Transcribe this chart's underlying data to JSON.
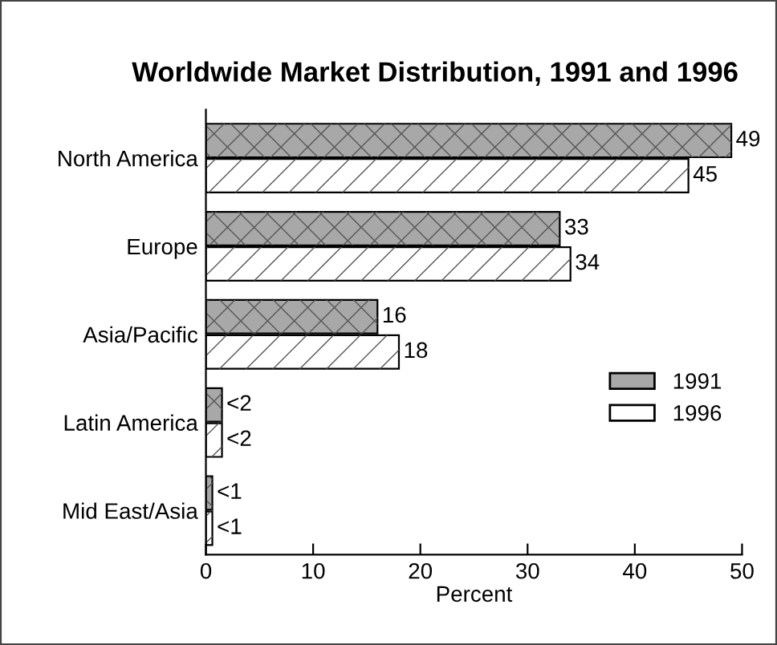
{
  "chart_data": {
    "type": "bar",
    "orientation": "horizontal",
    "title": "Worldwide Market Distribution, 1991 and 1996",
    "xlabel": "Percent",
    "categories": [
      "North America",
      "Europe",
      "Asia/Pacific",
      "Latin America",
      "Mid East/Asia"
    ],
    "series": [
      {
        "name": "1991",
        "color": "#a8a8a8",
        "values": [
          49,
          33,
          16,
          1.5,
          0.6
        ],
        "value_labels": [
          "49",
          "33",
          "16",
          "<2",
          "<1"
        ]
      },
      {
        "name": "1996",
        "color": "#ffffff",
        "values": [
          45,
          34,
          18,
          1.5,
          0.6
        ],
        "value_labels": [
          "45",
          "34",
          "18",
          "<2",
          "<1"
        ]
      }
    ],
    "xlim": [
      0,
      50
    ],
    "xticks": [
      0,
      10,
      20,
      30,
      40,
      50
    ],
    "grid": false,
    "legend": "right"
  }
}
